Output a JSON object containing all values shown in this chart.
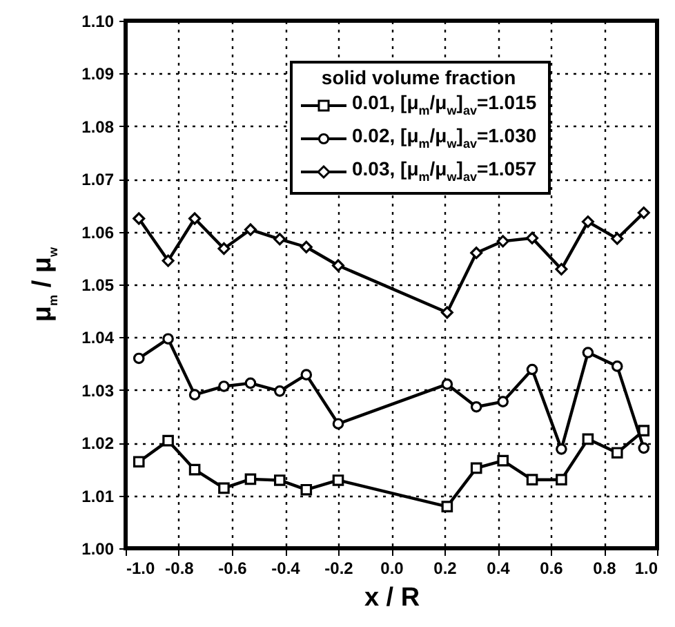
{
  "chart_data": {
    "type": "line",
    "xlabel": "x / R",
    "ylabel": "μ$_{m}$ / μ$_{w}$",
    "legend_title": "solid volume fraction",
    "x": [
      -0.95,
      -0.84,
      -0.74,
      -0.63,
      -0.53,
      -0.42,
      -0.32,
      -0.2,
      0.21,
      0.32,
      0.42,
      0.53,
      0.64,
      0.74,
      0.85,
      0.95
    ],
    "series": [
      {
        "name": "0.01, [μ$_{m}$/μ$_{w}$]$_{av}$=1.015",
        "color": "#000000",
        "marker": "square",
        "values": [
          1.0164,
          1.0204,
          1.0149,
          1.0114,
          1.0131,
          1.0129,
          1.0111,
          1.0129,
          1.0079,
          1.0152,
          1.0166,
          1.013,
          1.013,
          1.0207,
          1.0181,
          1.0223
        ]
      },
      {
        "name": "0.02, [μ$_{m}$/μ$_{w}$]$_{av}$=1.030",
        "color": "#000000",
        "marker": "circle",
        "values": [
          1.036,
          1.0397,
          1.0291,
          1.0307,
          1.0313,
          1.0298,
          1.0329,
          1.0236,
          1.0311,
          1.0268,
          1.0278,
          1.0339,
          1.0188,
          1.0371,
          1.0345,
          1.019
        ]
      },
      {
        "name": "0.03, [μ$_{m}$/μ$_{w}$]$_{av}$=1.057",
        "color": "#000000",
        "marker": "diamond",
        "values": [
          1.0625,
          1.0545,
          1.0625,
          1.0568,
          1.0604,
          1.0586,
          1.0571,
          1.0536,
          1.0447,
          1.056,
          1.0582,
          1.0588,
          1.0529,
          1.0619,
          1.0587,
          1.0636
        ]
      }
    ],
    "xlim": [
      -1.0,
      1.0
    ],
    "ylim": [
      1.0,
      1.1
    ],
    "xticks": [
      {
        "value": -1.0,
        "label": "-1.0"
      },
      {
        "value": -0.8,
        "label": "-0.8"
      },
      {
        "value": -0.6,
        "label": "-0.6"
      },
      {
        "value": -0.4,
        "label": "-0.4"
      },
      {
        "value": -0.2,
        "label": "-0.2"
      },
      {
        "value": 0,
        "label": "0.0"
      },
      {
        "value": 0.2,
        "label": "0.2"
      },
      {
        "value": 0.4,
        "label": "0.4"
      },
      {
        "value": 0.6,
        "label": "0.6"
      },
      {
        "value": 0.8,
        "label": "0.8"
      },
      {
        "value": 1.0,
        "label": "1.0"
      }
    ],
    "yticks": [
      {
        "value": 1.0,
        "label": "1.00"
      },
      {
        "value": 1.01,
        "label": "1.01"
      },
      {
        "value": 1.02,
        "label": "1.02"
      },
      {
        "value": 1.03,
        "label": "1.03"
      },
      {
        "value": 1.04,
        "label": "1.04"
      },
      {
        "value": 1.05,
        "label": "1.05"
      },
      {
        "value": 1.06,
        "label": "1.06"
      },
      {
        "value": 1.07,
        "label": "1.07"
      },
      {
        "value": 1.08,
        "label": "1.08"
      },
      {
        "value": 1.09,
        "label": "1.09"
      },
      {
        "value": 1.1,
        "label": "1.10"
      }
    ],
    "grid": true,
    "legend": "top",
    "line_style": "solid"
  }
}
